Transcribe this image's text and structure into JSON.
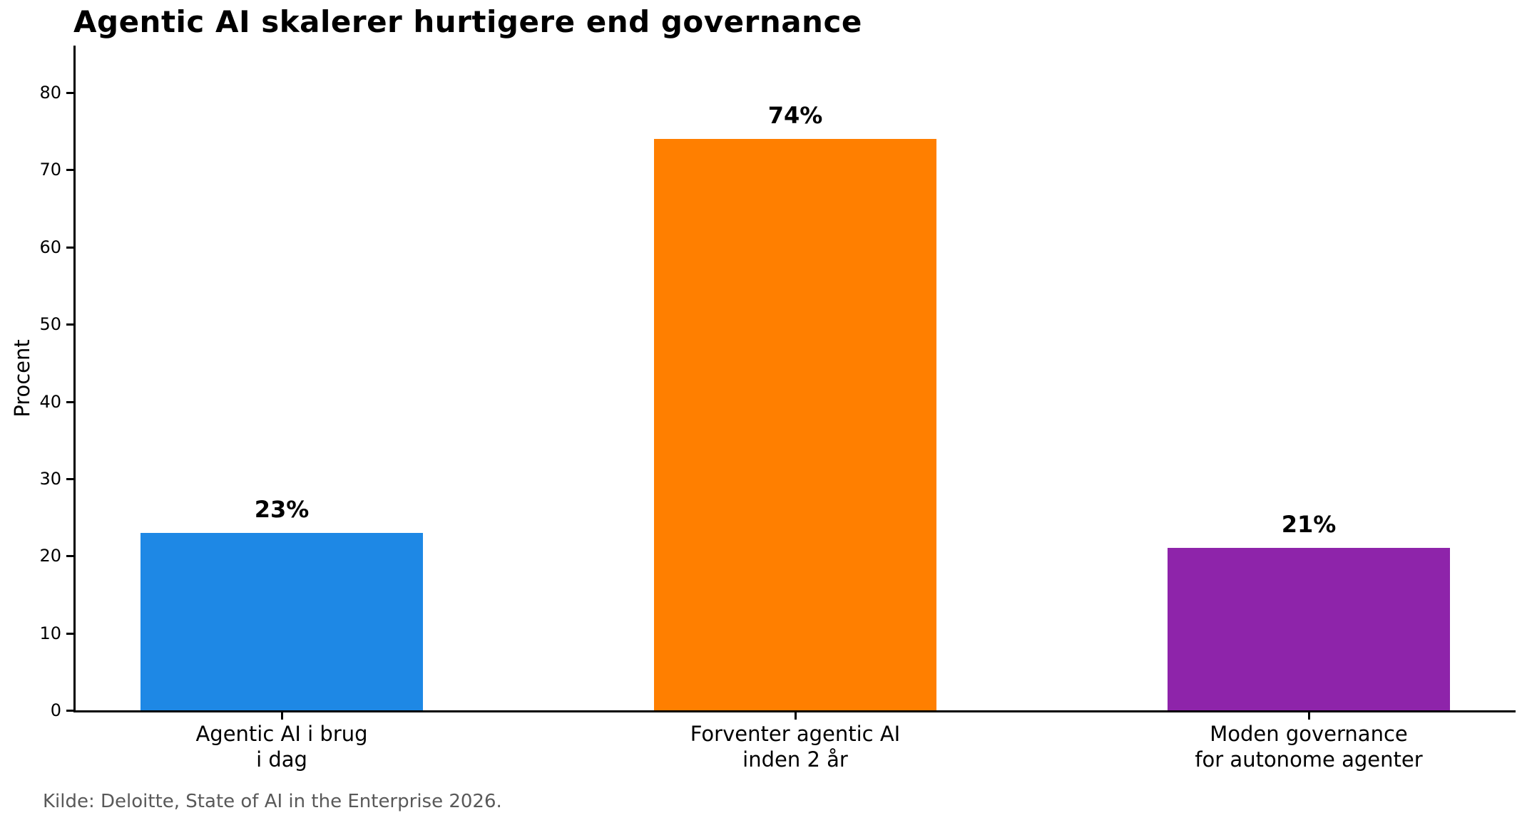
{
  "title": "Agentic AI skalerer hurtigere end governance",
  "source": "Kilde: Deloitte, State of AI in the Enterprise 2026.",
  "chart_data": {
    "type": "bar",
    "title": "Agentic AI skalerer hurtigere end governance",
    "xlabel": "",
    "ylabel": "Procent",
    "ylim": [
      0,
      80
    ],
    "ytick_step": 10,
    "grid": false,
    "legend": "none",
    "categories": [
      "Agentic AI i brug\ni dag",
      "Forventer agentic AI\ninden 2 år",
      "Moden governance\nfor autonome agenter"
    ],
    "values": [
      23,
      74,
      21
    ],
    "bar_value_labels": [
      "23%",
      "74%",
      "21%"
    ],
    "bar_colors": [
      "#1e88e5",
      "#ff7f00",
      "#8e24aa"
    ],
    "axis_color": "#000000",
    "source_caption": "Kilde: Deloitte, State of AI in the Enterprise 2026."
  }
}
